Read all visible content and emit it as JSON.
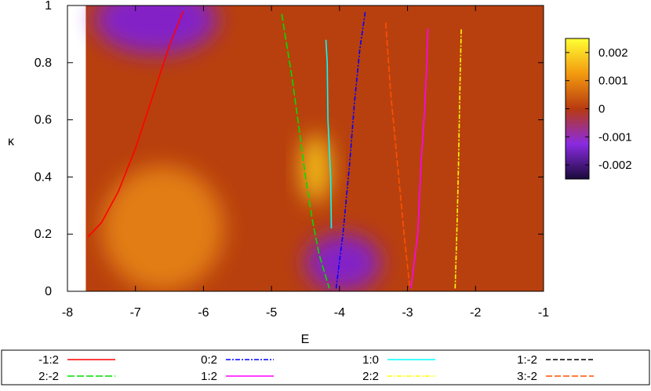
{
  "chart_data": {
    "type": "heatmap",
    "title": "",
    "xlabel": "E",
    "ylabel": "κ",
    "xlim": [
      -8,
      -1
    ],
    "ylim": [
      0,
      1
    ],
    "x_ticks": [
      "-8",
      "-7",
      "-6",
      "-5",
      "-4",
      "-3",
      "-2",
      "-1"
    ],
    "y_ticks": [
      "0",
      "0.2",
      "0.4",
      "0.6",
      "0.8",
      "1"
    ],
    "colorbar": {
      "range": [
        -0.0025,
        0.0025
      ],
      "ticks": [
        "0.002",
        "0.001",
        "0",
        "-0.001",
        "-0.002"
      ],
      "colors": [
        "#ffff33",
        "#f39a10",
        "#b83a10",
        "#8a2be2",
        "#1a0a3a"
      ]
    },
    "background_color": "#b8400e",
    "heatmap_regions": [
      {
        "kind": "orange",
        "cx": -6.6,
        "cy": 0.22,
        "rx": 0.9,
        "ry": 0.22
      },
      {
        "kind": "yellow",
        "cx": -4.35,
        "cy": 0.43,
        "rx": 0.22,
        "ry": 0.12
      },
      {
        "kind": "purple",
        "cx": -6.7,
        "cy": 0.95,
        "rx": 0.9,
        "ry": 0.12
      },
      {
        "kind": "purple",
        "cx": -3.95,
        "cy": 0.1,
        "rx": 0.55,
        "ry": 0.1
      }
    ],
    "series": [
      {
        "name": "-1:2",
        "color": "#ff0000",
        "dash": "",
        "x": [
          -7.7,
          -7.5,
          -7.25,
          -7.0,
          -6.75,
          -6.5,
          -6.3
        ],
        "y": [
          0.19,
          0.24,
          0.35,
          0.5,
          0.68,
          0.86,
          0.98
        ]
      },
      {
        "name": "2:-2",
        "color": "#00dd00",
        "dash": "9,3",
        "x": [
          -4.85,
          -4.7,
          -4.6,
          -4.5,
          -4.4,
          -4.3,
          -4.15
        ],
        "y": [
          0.97,
          0.75,
          0.58,
          0.4,
          0.25,
          0.13,
          0.01
        ]
      },
      {
        "name": "0:2",
        "color": "#0000ff",
        "dash": "6,2,2,2",
        "x": [
          -4.05,
          -3.95,
          -3.85,
          -3.78,
          -3.7,
          -3.62
        ],
        "y": [
          0.01,
          0.2,
          0.45,
          0.66,
          0.85,
          0.98
        ]
      },
      {
        "name": "1:2",
        "color": "#ff00ff",
        "dash": "",
        "x": [
          -2.95,
          -2.85,
          -2.8,
          -2.75,
          -2.72,
          -2.7
        ],
        "y": [
          0.01,
          0.2,
          0.45,
          0.63,
          0.78,
          0.92
        ]
      },
      {
        "name": "1:0",
        "color": "#00ffff",
        "dash": "",
        "x": [
          -4.2,
          -4.18,
          -4.17,
          -4.13,
          -4.12
        ],
        "y": [
          0.88,
          0.8,
          0.6,
          0.4,
          0.22
        ]
      },
      {
        "name": "2:2",
        "color": "#ffff00",
        "dash": "6,2,2,2",
        "x": [
          -2.3,
          -2.27,
          -2.25,
          -2.23,
          -2.21
        ],
        "y": [
          0.01,
          0.25,
          0.45,
          0.7,
          0.92
        ]
      },
      {
        "name": "1:-2",
        "color": "#000000",
        "dash": "6,3",
        "x": [],
        "y": []
      },
      {
        "name": "3:-2",
        "color": "#ff5000",
        "dash": "8,3",
        "x": [
          -3.32,
          -3.25,
          -3.15,
          -3.05,
          -2.97
        ],
        "y": [
          0.94,
          0.7,
          0.45,
          0.2,
          0.02
        ]
      }
    ],
    "legend": {
      "position": "bottom",
      "rows": [
        [
          {
            "label": "-1:2",
            "series": 0
          },
          {
            "label": "0:2",
            "series": 2
          },
          {
            "label": "1:0",
            "series": 4
          },
          {
            "label": "1:-2",
            "series": 6
          }
        ],
        [
          {
            "label": "2:-2",
            "series": 1
          },
          {
            "label": "1:2",
            "series": 3
          },
          {
            "label": "2:2",
            "series": 5
          },
          {
            "label": "3:-2",
            "series": 7
          }
        ]
      ]
    }
  }
}
